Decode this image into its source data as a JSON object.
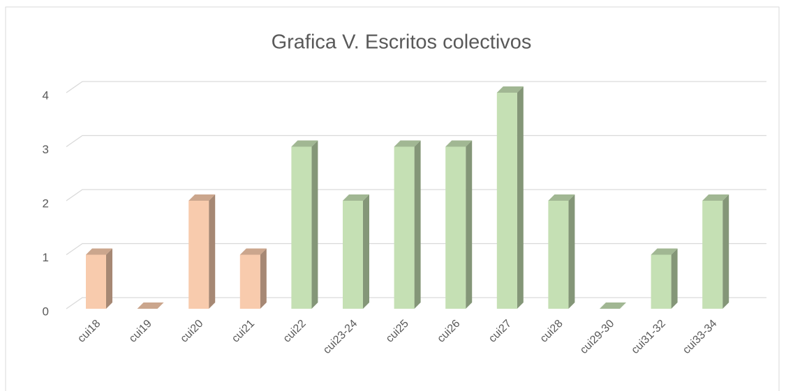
{
  "chart_data": {
    "type": "bar3d",
    "title": "Grafica V. Escritos colectivos",
    "categories": [
      "cui18",
      "cui19",
      "cui20",
      "cui21",
      "cui22",
      "cui23-24",
      "cui25",
      "cui26",
      "cui27",
      "cui28",
      "cui29-30",
      "cui31-32",
      "cui33-34"
    ],
    "values": [
      1,
      0,
      2,
      1,
      3,
      2,
      3,
      3,
      4,
      2,
      0,
      1,
      2
    ],
    "colors": [
      "#f8cbad",
      "#f8cbad",
      "#f8cbad",
      "#f8cbad",
      "#c5e0b4",
      "#c5e0b4",
      "#c5e0b4",
      "#c5e0b4",
      "#c5e0b4",
      "#c5e0b4",
      "#c5e0b4",
      "#c5e0b4",
      "#c5e0b4"
    ],
    "ylim": [
      0,
      4
    ],
    "yticks": [
      0,
      1,
      2,
      3,
      4
    ],
    "grid": true
  }
}
